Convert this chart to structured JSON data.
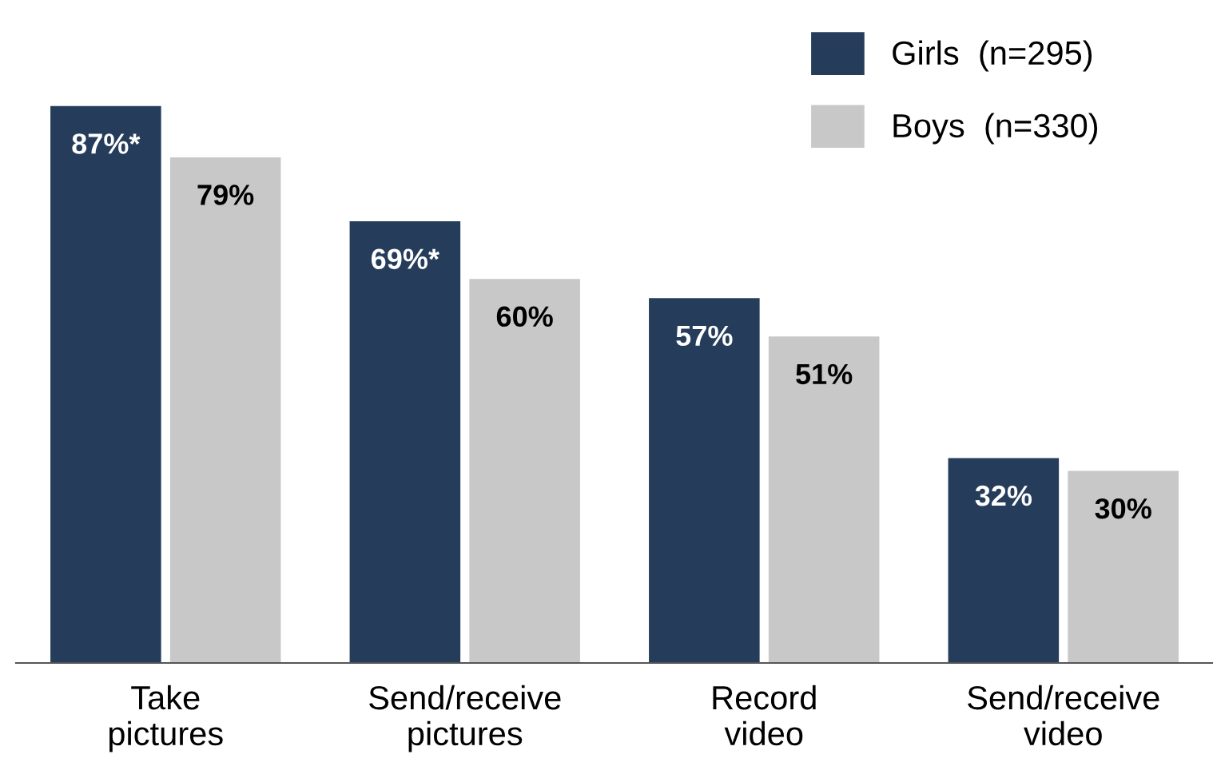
{
  "chart_data": {
    "type": "bar",
    "categories": [
      "Take\npictures",
      "Send/receive\npictures",
      "Record\nvideo",
      "Send/receive\nvideo"
    ],
    "series": [
      {
        "name": "Girls  (n=295)",
        "color": "#253d5b",
        "values": [
          87,
          69,
          57,
          32
        ],
        "value_labels": [
          "87%*",
          "69%*",
          "57%",
          "32%"
        ]
      },
      {
        "name": "Boys  (n=330)",
        "color": "#c8c8c8",
        "values": [
          79,
          60,
          51,
          30
        ],
        "value_labels": [
          "79%",
          "60%",
          "51%",
          "30%"
        ]
      }
    ],
    "grid": false,
    "legend": "top right"
  }
}
